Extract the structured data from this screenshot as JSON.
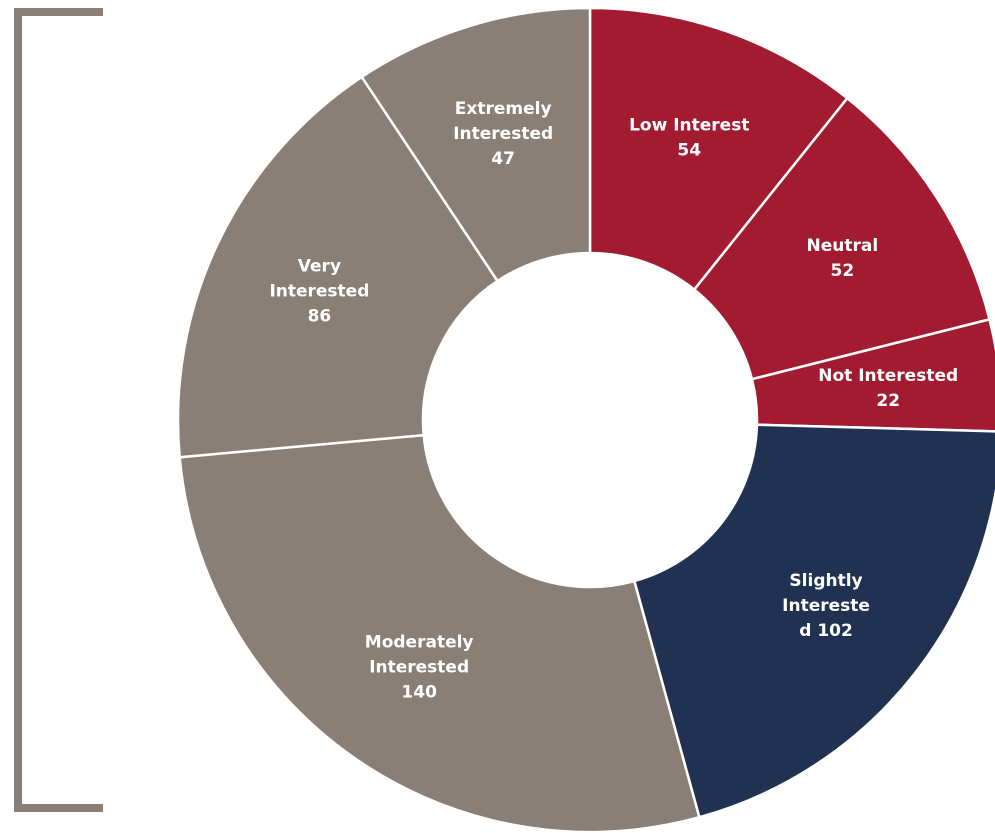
{
  "chart_data": {
    "type": "pie",
    "variant": "donut",
    "start_direction": "12 o'clock",
    "order": "clockwise",
    "slices": [
      {
        "label": "Low Interest",
        "value": 54,
        "color": "#A31B30",
        "label_lines": [
          "Low Interest",
          "54"
        ]
      },
      {
        "label": "Neutral",
        "value": 52,
        "color": "#A31B30",
        "label_lines": [
          "Neutral",
          "52"
        ]
      },
      {
        "label": "Not Interested",
        "value": 22,
        "color": "#A31B30",
        "label_lines": [
          "Not Interested",
          "22"
        ]
      },
      {
        "label": "Slightly Interested",
        "value": 102,
        "color": "#213152",
        "label_lines": [
          "Slightly",
          "Intereste",
          "d 102"
        ]
      },
      {
        "label": "Moderately Interested",
        "value": 140,
        "color": "#8A7F76",
        "label_lines": [
          "Moderately",
          "Interested",
          "140"
        ]
      },
      {
        "label": "Very Interested",
        "value": 86,
        "color": "#8A7F76",
        "label_lines": [
          "Very",
          "Interested",
          "86"
        ]
      },
      {
        "label": "Extremely Interested",
        "value": 47,
        "color": "#8A7F76",
        "label_lines": [
          "Extremely",
          "Interested",
          "47"
        ]
      }
    ],
    "bracket": {
      "side": "left",
      "color": "#8A7F76"
    },
    "label_color": "#FFFFFF",
    "separator_color": "#FFFFFF"
  }
}
